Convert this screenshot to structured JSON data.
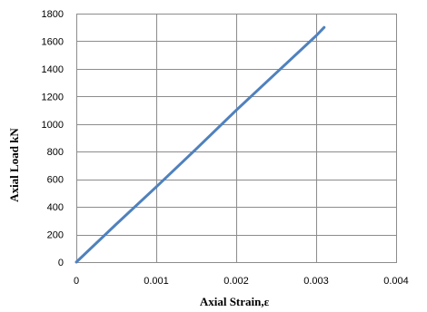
{
  "chart_data": {
    "type": "line",
    "xlabel": "Axial Strain,ε",
    "ylabel": "Axial Load kN",
    "xlim": [
      0,
      0.004
    ],
    "ylim": [
      0,
      1800
    ],
    "x_ticks": [
      "0",
      "0.001",
      "0.002",
      "0.003",
      "0.004"
    ],
    "y_ticks": [
      "0",
      "200",
      "400",
      "600",
      "800",
      "1000",
      "1200",
      "1400",
      "1600",
      "1800"
    ],
    "grid": true,
    "legend": "none",
    "series": [
      {
        "color": "#4f81bd",
        "x": [
          0,
          0.0005,
          0.001,
          0.0015,
          0.002,
          0.0025,
          0.003,
          0.0031
        ],
        "y": [
          0,
          275,
          545,
          820,
          1100,
          1370,
          1640,
          1700
        ]
      }
    ]
  }
}
